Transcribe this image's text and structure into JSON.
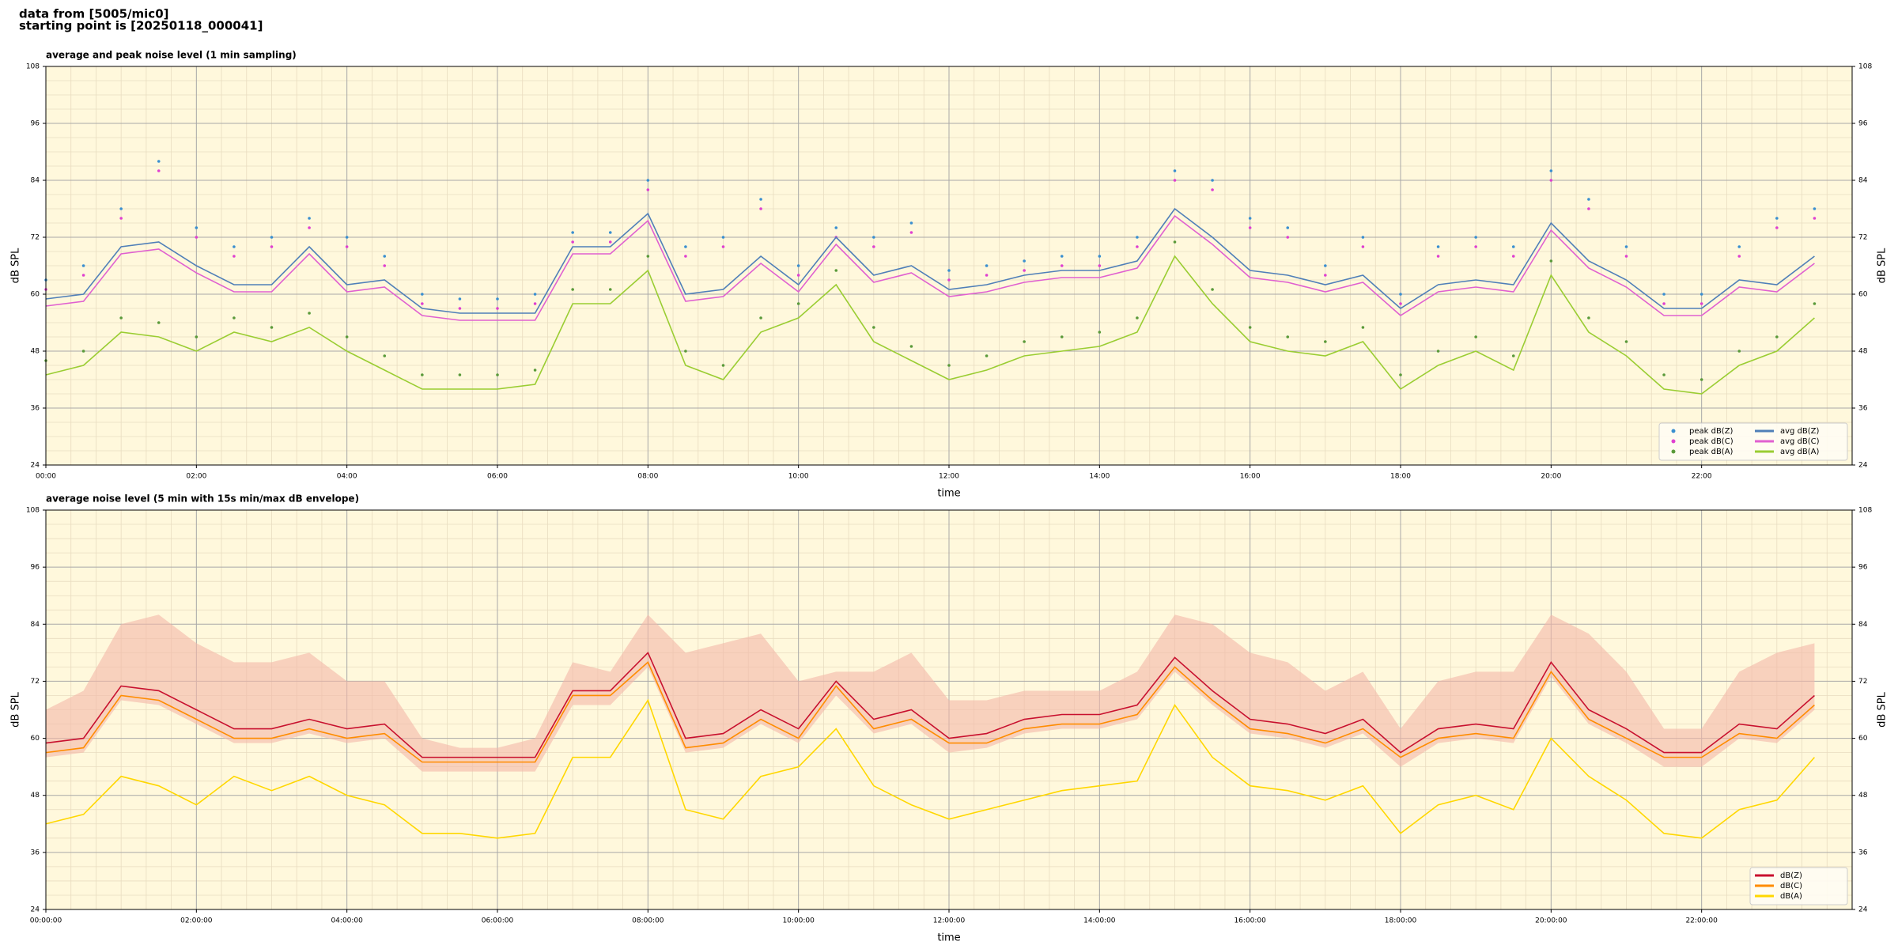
{
  "header": {
    "lines": [
      "data from [5005/mic0]",
      "starting point is [20250118_000041]"
    ]
  },
  "chart_data": [
    {
      "type": "line",
      "title": "average and peak noise level (1 min sampling)",
      "xlabel": "time",
      "ylabel": "dB SPL",
      "xlim": [
        0,
        24
      ],
      "ylim": [
        24,
        108
      ],
      "yticks": [
        24,
        36,
        48,
        60,
        72,
        84,
        96,
        108
      ],
      "xticks": [
        {
          "value": 0,
          "label": "00:00"
        },
        {
          "value": 2,
          "label": "02:00"
        },
        {
          "value": 4,
          "label": "04:00"
        },
        {
          "value": 6,
          "label": "06:00"
        },
        {
          "value": 8,
          "label": "08:00"
        },
        {
          "value": 10,
          "label": "10:00"
        },
        {
          "value": 12,
          "label": "12:00"
        },
        {
          "value": 14,
          "label": "14:00"
        },
        {
          "value": 16,
          "label": "16:00"
        },
        {
          "value": 18,
          "label": "18:00"
        },
        {
          "value": 20,
          "label": "20:00"
        },
        {
          "value": 22,
          "label": "22:00"
        }
      ],
      "grid": true,
      "background": "#fff8dc",
      "legend": "lower right",
      "legend_columns": 2,
      "x": [
        0,
        0.5,
        1,
        1.5,
        2,
        2.5,
        3,
        3.5,
        4,
        4.5,
        5,
        5.5,
        6,
        6.5,
        7,
        7.5,
        8,
        8.5,
        9,
        9.5,
        10,
        10.5,
        11,
        11.5,
        12,
        12.5,
        13,
        13.5,
        14,
        14.5,
        15,
        15.5,
        16,
        16.5,
        17,
        17.5,
        18,
        18.5,
        19,
        19.5,
        20,
        20.5,
        21,
        21.5,
        22,
        22.5,
        23,
        23.5
      ],
      "series": [
        {
          "name": "peak dB(Z)",
          "kind": "scatter",
          "color": "#3a8fd0",
          "values": [
            63,
            66,
            78,
            88,
            74,
            70,
            72,
            76,
            72,
            68,
            60,
            59,
            59,
            60,
            73,
            73,
            84,
            70,
            72,
            80,
            66,
            74,
            72,
            75,
            65,
            66,
            67,
            68,
            68,
            72,
            86,
            84,
            76,
            74,
            66,
            72,
            60,
            70,
            72,
            70,
            86,
            80,
            70,
            60,
            60,
            70,
            76,
            78
          ]
        },
        {
          "name": "peak dB(C)",
          "kind": "scatter",
          "color": "#e040d0",
          "values": [
            61,
            64,
            76,
            86,
            72,
            68,
            70,
            74,
            70,
            66,
            58,
            57,
            57,
            58,
            71,
            71,
            82,
            68,
            70,
            78,
            64,
            72,
            70,
            73,
            63,
            64,
            65,
            66,
            66,
            70,
            84,
            82,
            74,
            72,
            64,
            70,
            58,
            68,
            70,
            68,
            84,
            78,
            68,
            58,
            58,
            68,
            74,
            76
          ]
        },
        {
          "name": "peak dB(A)",
          "kind": "scatter",
          "color": "#5a9a3a",
          "values": [
            46,
            48,
            55,
            54,
            51,
            55,
            53,
            56,
            51,
            47,
            43,
            43,
            43,
            44,
            61,
            61,
            68,
            48,
            45,
            55,
            58,
            65,
            53,
            49,
            45,
            47,
            50,
            51,
            52,
            55,
            71,
            61,
            53,
            51,
            50,
            53,
            43,
            48,
            51,
            47,
            67,
            55,
            50,
            43,
            42,
            48,
            51,
            58
          ]
        },
        {
          "name": "avg dB(Z)",
          "kind": "line",
          "color": "#4f7fb8",
          "values": [
            59,
            60,
            70,
            71,
            66,
            62,
            62,
            70,
            62,
            63,
            57,
            56,
            56,
            56,
            70,
            70,
            77,
            60,
            61,
            68,
            62,
            72,
            64,
            66,
            61,
            62,
            64,
            65,
            65,
            67,
            78,
            72,
            65,
            64,
            62,
            64,
            57,
            62,
            63,
            62,
            75,
            67,
            63,
            57,
            57,
            63,
            62,
            68
          ]
        },
        {
          "name": "avg dB(C)",
          "kind": "line",
          "color": "#e060d0",
          "values": [
            57.5,
            58.5,
            68.5,
            69.5,
            64.5,
            60.5,
            60.5,
            68.5,
            60.5,
            61.5,
            55.5,
            54.5,
            54.5,
            54.5,
            68.5,
            68.5,
            75.5,
            58.5,
            59.5,
            66.5,
            60.5,
            70.5,
            62.5,
            64.5,
            59.5,
            60.5,
            62.5,
            63.5,
            63.5,
            65.5,
            76.5,
            70.5,
            63.5,
            62.5,
            60.5,
            62.5,
            55.5,
            60.5,
            61.5,
            60.5,
            73.5,
            65.5,
            61.5,
            55.5,
            55.5,
            61.5,
            60.5,
            66.5
          ]
        },
        {
          "name": "avg dB(A)",
          "kind": "line",
          "color": "#9acd32",
          "values": [
            43,
            45,
            52,
            51,
            48,
            52,
            50,
            53,
            48,
            44,
            40,
            40,
            40,
            41,
            58,
            58,
            65,
            45,
            42,
            52,
            55,
            62,
            50,
            46,
            42,
            44,
            47,
            48,
            49,
            52,
            68,
            58,
            50,
            48,
            47,
            50,
            40,
            45,
            48,
            44,
            64,
            52,
            47,
            40,
            39,
            45,
            48,
            55
          ]
        }
      ]
    },
    {
      "type": "line",
      "title": "average noise level (5 min with 15s min/max dB envelope)",
      "xlabel": "time",
      "ylabel": "dB SPL",
      "xlim": [
        0,
        24
      ],
      "ylim": [
        24,
        108
      ],
      "yticks": [
        24,
        36,
        48,
        60,
        72,
        84,
        96,
        108
      ],
      "xticks": [
        {
          "value": 0,
          "label": "00:00:00"
        },
        {
          "value": 2,
          "label": "02:00:00"
        },
        {
          "value": 4,
          "label": "04:00:00"
        },
        {
          "value": 6,
          "label": "06:00:00"
        },
        {
          "value": 8,
          "label": "08:00:00"
        },
        {
          "value": 10,
          "label": "10:00:00"
        },
        {
          "value": 12,
          "label": "12:00:00"
        },
        {
          "value": 14,
          "label": "14:00:00"
        },
        {
          "value": 16,
          "label": "16:00:00"
        },
        {
          "value": 18,
          "label": "18:00:00"
        },
        {
          "value": 20,
          "label": "20:00:00"
        },
        {
          "value": 22,
          "label": "22:00:00"
        }
      ],
      "grid": true,
      "background": "#fff8dc",
      "legend": "lower right",
      "legend_columns": 1,
      "x": [
        0,
        0.5,
        1,
        1.5,
        2,
        2.5,
        3,
        3.5,
        4,
        4.5,
        5,
        5.5,
        6,
        6.5,
        7,
        7.5,
        8,
        8.5,
        9,
        9.5,
        10,
        10.5,
        11,
        11.5,
        12,
        12.5,
        13,
        13.5,
        14,
        14.5,
        15,
        15.5,
        16,
        16.5,
        17,
        17.5,
        18,
        18.5,
        19,
        19.5,
        20,
        20.5,
        21,
        21.5,
        22,
        22.5,
        23,
        23.5
      ],
      "envelope": {
        "color": "#f4b8a8",
        "high": [
          66,
          70,
          84,
          86,
          80,
          76,
          76,
          78,
          72,
          72,
          60,
          58,
          58,
          60,
          76,
          74,
          86,
          78,
          80,
          82,
          72,
          74,
          74,
          78,
          68,
          68,
          70,
          70,
          70,
          74,
          86,
          84,
          78,
          76,
          70,
          74,
          62,
          72,
          74,
          74,
          86,
          82,
          74,
          62,
          62,
          74,
          78,
          80
        ],
        "low": [
          56,
          57,
          68,
          67,
          63,
          59,
          59,
          61,
          59,
          60,
          53,
          53,
          53,
          53,
          67,
          67,
          75,
          57,
          58,
          63,
          59,
          69,
          61,
          63,
          57,
          58,
          61,
          62,
          62,
          64,
          74,
          67,
          61,
          60,
          58,
          61,
          54,
          59,
          60,
          59,
          73,
          63,
          59,
          54,
          54,
          60,
          59,
          66
        ]
      },
      "series": [
        {
          "name": "dB(Z)",
          "kind": "line",
          "color": "#c8102e",
          "values": [
            59,
            60,
            71,
            70,
            66,
            62,
            62,
            64,
            62,
            63,
            56,
            56,
            56,
            56,
            70,
            70,
            78,
            60,
            61,
            66,
            62,
            72,
            64,
            66,
            60,
            61,
            64,
            65,
            65,
            67,
            77,
            70,
            64,
            63,
            61,
            64,
            57,
            62,
            63,
            62,
            76,
            66,
            62,
            57,
            57,
            63,
            62,
            69
          ]
        },
        {
          "name": "dB(C)",
          "kind": "line",
          "color": "#ff8c00",
          "values": [
            57,
            58,
            69,
            68,
            64,
            60,
            60,
            62,
            60,
            61,
            55,
            55,
            55,
            55,
            69,
            69,
            76,
            58,
            59,
            64,
            60,
            71,
            62,
            64,
            59,
            59,
            62,
            63,
            63,
            65,
            75,
            68,
            62,
            61,
            59,
            62,
            56,
            60,
            61,
            60,
            74,
            64,
            60,
            56,
            56,
            61,
            60,
            67
          ]
        },
        {
          "name": "dB(A)",
          "kind": "line",
          "color": "#ffd700",
          "values": [
            42,
            44,
            52,
            50,
            46,
            52,
            49,
            52,
            48,
            46,
            40,
            40,
            39,
            40,
            56,
            56,
            68,
            45,
            43,
            52,
            54,
            62,
            50,
            46,
            43,
            45,
            47,
            49,
            50,
            51,
            67,
            56,
            50,
            49,
            47,
            50,
            40,
            46,
            48,
            45,
            60,
            52,
            47,
            40,
            39,
            45,
            47,
            56
          ]
        }
      ]
    }
  ]
}
